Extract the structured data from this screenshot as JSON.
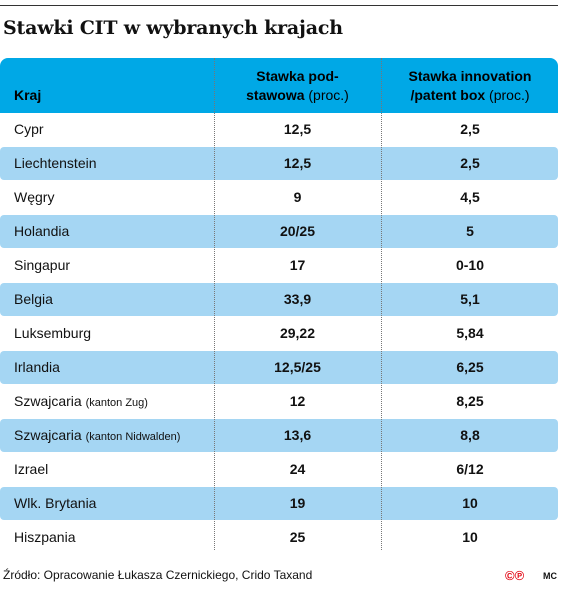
{
  "title": "Stawki CIT w wybranych krajach",
  "chart_data": {
    "type": "table",
    "columns": [
      {
        "label": "Kraj",
        "unit": ""
      },
      {
        "label": "Stawka pod-\nstawowa",
        "unit": "(proc.)"
      },
      {
        "label": "Stawka innovation\n/patent box",
        "unit": "(proc.)"
      }
    ],
    "rows": [
      {
        "country": "Cypr",
        "note": "",
        "base": "12,5",
        "box": "2,5"
      },
      {
        "country": "Liechtenstein",
        "note": "",
        "base": "12,5",
        "box": "2,5"
      },
      {
        "country": "Węgry",
        "note": "",
        "base": "9",
        "box": "4,5"
      },
      {
        "country": "Holandia",
        "note": "",
        "base": "20/25",
        "box": "5"
      },
      {
        "country": "Singapur",
        "note": "",
        "base": "17",
        "box": "0-10"
      },
      {
        "country": "Belgia",
        "note": "",
        "base": "33,9",
        "box": "5,1"
      },
      {
        "country": "Luksemburg",
        "note": "",
        "base": "29,22",
        "box": "5,84"
      },
      {
        "country": "Irlandia",
        "note": "",
        "base": "12,5/25",
        "box": "6,25"
      },
      {
        "country": "Szwajcaria",
        "note": "(kanton Zug)",
        "base": "12",
        "box": "8,25"
      },
      {
        "country": "Szwajcaria",
        "note": "(kanton Nidwalden)",
        "base": "13,6",
        "box": "8,8"
      },
      {
        "country": "Izrael",
        "note": "",
        "base": "24",
        "box": "6/12"
      },
      {
        "country": "Wlk. Brytania",
        "note": "",
        "base": "19",
        "box": "10"
      },
      {
        "country": "Hiszpania",
        "note": "",
        "base": "25",
        "box": "10"
      }
    ]
  },
  "source": "Źródło: Opracowanie Łukasza Czernickiego, Crido Taxand",
  "logo_text": "©℗",
  "initials": "MC",
  "colors": {
    "header": "#00a8e6",
    "stripe": "#a5d6f3",
    "logo": "#e30613"
  }
}
